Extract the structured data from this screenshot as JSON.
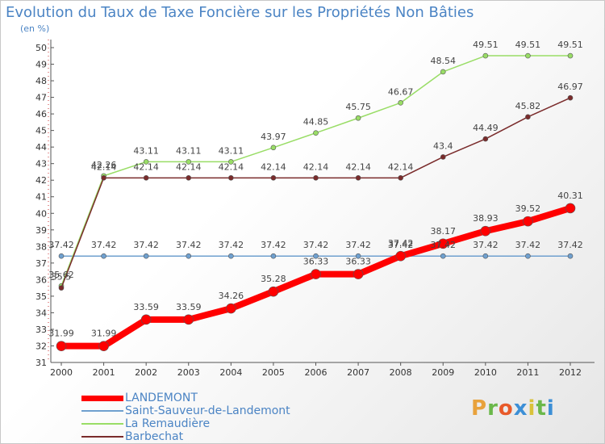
{
  "header": {
    "title": "Evolution du Taux de Taxe Foncière sur les Propriétés Non Bâties",
    "unit": "(en %)"
  },
  "logo": {
    "text": "Proxiti",
    "colors": [
      "#e8a23c",
      "#6bb84a",
      "#e85a2a",
      "#3c8fd6",
      "#d9c23a",
      "#6bb84a",
      "#3c8fd6"
    ]
  },
  "chart_data": {
    "type": "line",
    "x": [
      "2000",
      "2001",
      "2002",
      "2003",
      "2004",
      "2005",
      "2006",
      "2007",
      "2008",
      "2009",
      "2010",
      "2011",
      "2012"
    ],
    "ylim": [
      31,
      50
    ],
    "yticks": [
      31,
      32,
      33,
      34,
      35,
      36,
      37,
      38,
      39,
      40,
      41,
      42,
      43,
      44,
      45,
      46,
      47,
      48,
      49,
      50
    ],
    "grid": false,
    "legend": "bottom-left",
    "series": [
      {
        "name": "LANDEMONT",
        "color": "#ff0000",
        "values": [
          31.99,
          31.99,
          33.59,
          33.59,
          34.26,
          35.28,
          36.33,
          36.33,
          37.42,
          38.17,
          38.93,
          39.52,
          40.31
        ],
        "labels": [
          "31.99",
          "31.99",
          "33.59",
          "33.59",
          "34.26",
          "35.28",
          "36.33",
          "36.33",
          "37.42",
          "38.17",
          "38.93",
          "39.52",
          "40.31"
        ]
      },
      {
        "name": "Saint-Sauveur-de-Landemont",
        "color": "#6fa0cf",
        "values": [
          37.42,
          37.42,
          37.42,
          37.42,
          37.42,
          37.42,
          37.42,
          37.42,
          37.42,
          37.42,
          37.42,
          37.42,
          37.42
        ],
        "labels": [
          "37.42",
          "37.42",
          "37.42",
          "37.42",
          "37.42",
          "37.42",
          "37.42",
          "37.42",
          "37.42",
          "37.42",
          "37.42",
          "37.42",
          "37.42"
        ]
      },
      {
        "name": "La Remaudière",
        "color": "#99dd66",
        "values": [
          35.62,
          42.26,
          43.11,
          43.11,
          43.11,
          43.97,
          44.85,
          45.75,
          46.67,
          48.54,
          49.51,
          49.51,
          49.51
        ],
        "labels": [
          "35.62",
          "42.26",
          "43.11",
          "43.11",
          "43.11",
          "43.97",
          "44.85",
          "45.75",
          "46.67",
          "48.54",
          "49.51",
          "49.51",
          "49.51"
        ]
      },
      {
        "name": "Barbechat",
        "color": "#7a2b2b",
        "values": [
          35.5,
          42.14,
          42.14,
          42.14,
          42.14,
          42.14,
          42.14,
          42.14,
          42.14,
          43.4,
          44.49,
          45.82,
          46.97
        ],
        "labels": [
          "35.5",
          "42.14",
          "42.14",
          "42.14",
          "42.14",
          "42.14",
          "42.14",
          "42.14",
          "42.14",
          "43.4",
          "44.49",
          "45.82",
          "46.97"
        ]
      }
    ]
  }
}
